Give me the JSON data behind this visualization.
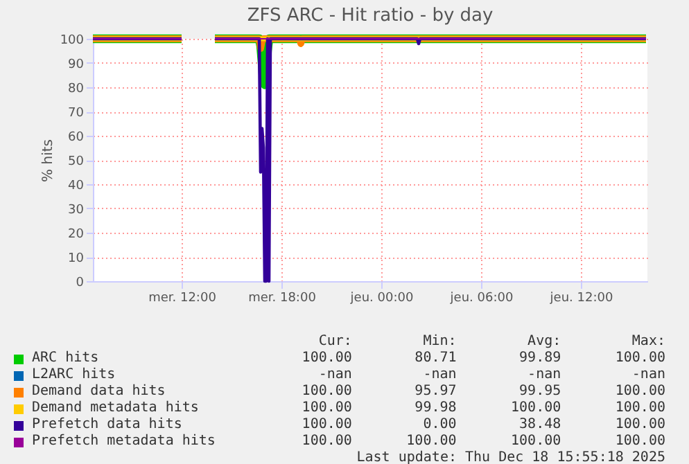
{
  "chart_data": {
    "type": "line",
    "title": "ZFS ARC - Hit ratio - by day",
    "ylabel": "% hits",
    "x": [
      "2025-12-17T06:40",
      "2025-12-17T12:00",
      "2025-12-17T13:00",
      "2025-12-17T14:00",
      "2025-12-17T16:40",
      "2025-12-17T16:45",
      "2025-12-17T16:50",
      "2025-12-17T16:55",
      "2025-12-17T17:00",
      "2025-12-17T17:05",
      "2025-12-17T17:10",
      "2025-12-17T17:15",
      "2025-12-17T17:20",
      "2025-12-17T19:05",
      "2025-12-17T19:10",
      "2025-12-17T19:15",
      "2025-12-18T02:10",
      "2025-12-18T02:15",
      "2025-12-18T02:20",
      "2025-12-18T15:55"
    ],
    "series": [
      {
        "name": "ARC hits",
        "color": "#00cc00",
        "values": [
          100,
          100,
          null,
          100,
          100,
          97,
          90,
          82,
          81,
          85,
          95,
          100,
          100,
          100,
          100,
          100,
          100,
          100,
          100,
          100
        ]
      },
      {
        "name": "L2ARC hits",
        "color": "#0066b3",
        "values": [
          null,
          null,
          null,
          null,
          null,
          null,
          null,
          null,
          null,
          null,
          null,
          null,
          null,
          null,
          null,
          null,
          null,
          null,
          null,
          null
        ]
      },
      {
        "name": "Demand data hits",
        "color": "#ff8000",
        "values": [
          100,
          100,
          null,
          100,
          100,
          96,
          99,
          100,
          100,
          100,
          100,
          100,
          100,
          100,
          98,
          100,
          100,
          100,
          100,
          100
        ]
      },
      {
        "name": "Demand metadata hits",
        "color": "#ffcc00",
        "values": [
          100,
          100,
          null,
          100,
          100,
          100,
          100,
          100,
          100,
          100,
          100,
          100,
          100,
          100,
          100,
          100,
          100,
          100,
          100,
          100
        ]
      },
      {
        "name": "Prefetch data hits",
        "color": "#330099",
        "values": [
          100,
          100,
          null,
          100,
          100,
          45,
          63,
          55,
          0,
          0,
          100,
          0,
          100,
          100,
          100,
          100,
          100,
          98,
          100,
          100
        ]
      },
      {
        "name": "Prefetch metadata hits",
        "color": "#990099",
        "values": [
          100,
          100,
          null,
          100,
          100,
          100,
          100,
          100,
          100,
          100,
          100,
          100,
          100,
          100,
          100,
          100,
          100,
          100,
          100,
          100
        ]
      }
    ],
    "xlim": [
      "2025-12-17T06:40",
      "2025-12-18T16:00"
    ],
    "xticks": [
      {
        "value": "2025-12-17T12:00",
        "label": "mer. 12:00"
      },
      {
        "value": "2025-12-17T18:00",
        "label": "mer. 18:00"
      },
      {
        "value": "2025-12-18T00:00",
        "label": "jeu. 00:00"
      },
      {
        "value": "2025-12-18T06:00",
        "label": "jeu. 06:00"
      },
      {
        "value": "2025-12-18T12:00",
        "label": "jeu. 12:00"
      }
    ],
    "ylim": [
      0,
      100
    ],
    "yticks": [
      0,
      10,
      20,
      30,
      40,
      50,
      60,
      70,
      80,
      90,
      100
    ],
    "grid": true,
    "legend": "bottom",
    "marker": "none",
    "line_style": "solid",
    "annotations": [
      "Cur:",
      "Min:",
      "Avg:",
      "Max:",
      "100.00",
      "80.71",
      "99.89",
      "100.00",
      "-nan",
      "-nan",
      "-nan",
      "-nan",
      "100.00",
      "95.97",
      "99.95",
      "100.00",
      "100.00",
      "99.98",
      "100.00",
      "100.00",
      "100.00",
      "0.00",
      "38.48",
      "100.00",
      "100.00",
      "100.00",
      "100.00",
      "100.00",
      "Last update: Thu Dec 18 15:55:18 2025"
    ]
  }
}
